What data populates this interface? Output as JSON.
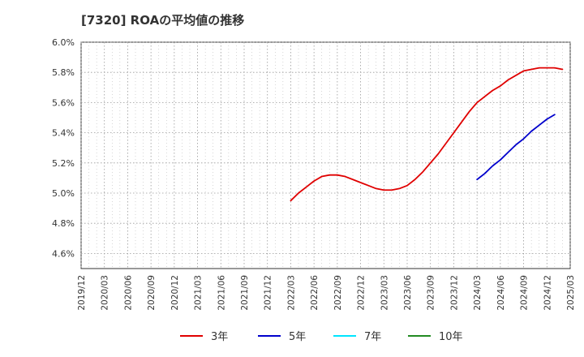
{
  "chart_data": {
    "type": "line",
    "title": "[7320]  ROAの平均値の推移",
    "xlabel": "",
    "ylabel": "",
    "ylim": [
      4.5,
      6.0
    ],
    "y_ticks": [
      {
        "value": 4.6,
        "label": "4.6%"
      },
      {
        "value": 4.8,
        "label": "4.8%"
      },
      {
        "value": 5.0,
        "label": "5.0%"
      },
      {
        "value": 5.2,
        "label": "5.2%"
      },
      {
        "value": 5.4,
        "label": "5.4%"
      },
      {
        "value": 5.6,
        "label": "5.6%"
      },
      {
        "value": 5.8,
        "label": "5.8%"
      },
      {
        "value": 6.0,
        "label": "6.0%"
      }
    ],
    "x_ticks": [
      "2019/12",
      "2020/03",
      "2020/06",
      "2020/09",
      "2020/12",
      "2021/03",
      "2021/06",
      "2021/09",
      "2021/12",
      "2022/03",
      "2022/06",
      "2022/09",
      "2022/12",
      "2023/03",
      "2023/06",
      "2023/09",
      "2023/12",
      "2024/03",
      "2024/06",
      "2024/09",
      "2024/12",
      "2025/03"
    ],
    "grid": true,
    "legend_position": "bottom",
    "series": [
      {
        "name": "3年",
        "color": "#e00000",
        "points": [
          {
            "x": "2022/03",
            "y": 4.95
          },
          {
            "x": "2022/04",
            "y": 5.0
          },
          {
            "x": "2022/05",
            "y": 5.04
          },
          {
            "x": "2022/06",
            "y": 5.08
          },
          {
            "x": "2022/07",
            "y": 5.11
          },
          {
            "x": "2022/08",
            "y": 5.12
          },
          {
            "x": "2022/09",
            "y": 5.12
          },
          {
            "x": "2022/10",
            "y": 5.11
          },
          {
            "x": "2022/11",
            "y": 5.09
          },
          {
            "x": "2022/12",
            "y": 5.07
          },
          {
            "x": "2023/01",
            "y": 5.05
          },
          {
            "x": "2023/02",
            "y": 5.03
          },
          {
            "x": "2023/03",
            "y": 5.02
          },
          {
            "x": "2023/04",
            "y": 5.02
          },
          {
            "x": "2023/05",
            "y": 5.03
          },
          {
            "x": "2023/06",
            "y": 5.05
          },
          {
            "x": "2023/07",
            "y": 5.09
          },
          {
            "x": "2023/08",
            "y": 5.14
          },
          {
            "x": "2023/09",
            "y": 5.2
          },
          {
            "x": "2023/10",
            "y": 5.26
          },
          {
            "x": "2023/11",
            "y": 5.33
          },
          {
            "x": "2023/12",
            "y": 5.4
          },
          {
            "x": "2024/01",
            "y": 5.47
          },
          {
            "x": "2024/02",
            "y": 5.54
          },
          {
            "x": "2024/03",
            "y": 5.6
          },
          {
            "x": "2024/04",
            "y": 5.64
          },
          {
            "x": "2024/05",
            "y": 5.68
          },
          {
            "x": "2024/06",
            "y": 5.71
          },
          {
            "x": "2024/07",
            "y": 5.75
          },
          {
            "x": "2024/08",
            "y": 5.78
          },
          {
            "x": "2024/09",
            "y": 5.81
          },
          {
            "x": "2024/10",
            "y": 5.82
          },
          {
            "x": "2024/11",
            "y": 5.83
          },
          {
            "x": "2024/12",
            "y": 5.83
          },
          {
            "x": "2025/01",
            "y": 5.83
          },
          {
            "x": "2025/02",
            "y": 5.82
          }
        ]
      },
      {
        "name": "5年",
        "color": "#0000cc",
        "points": [
          {
            "x": "2024/03",
            "y": 5.09
          },
          {
            "x": "2024/04",
            "y": 5.13
          },
          {
            "x": "2024/05",
            "y": 5.18
          },
          {
            "x": "2024/06",
            "y": 5.22
          },
          {
            "x": "2024/07",
            "y": 5.27
          },
          {
            "x": "2024/08",
            "y": 5.32
          },
          {
            "x": "2024/09",
            "y": 5.36
          },
          {
            "x": "2024/10",
            "y": 5.41
          },
          {
            "x": "2024/11",
            "y": 5.45
          },
          {
            "x": "2024/12",
            "y": 5.49
          },
          {
            "x": "2025/01",
            "y": 5.52
          }
        ]
      },
      {
        "name": "7年",
        "color": "#00e5ff",
        "points": []
      },
      {
        "name": "10年",
        "color": "#228b22",
        "points": []
      }
    ]
  }
}
